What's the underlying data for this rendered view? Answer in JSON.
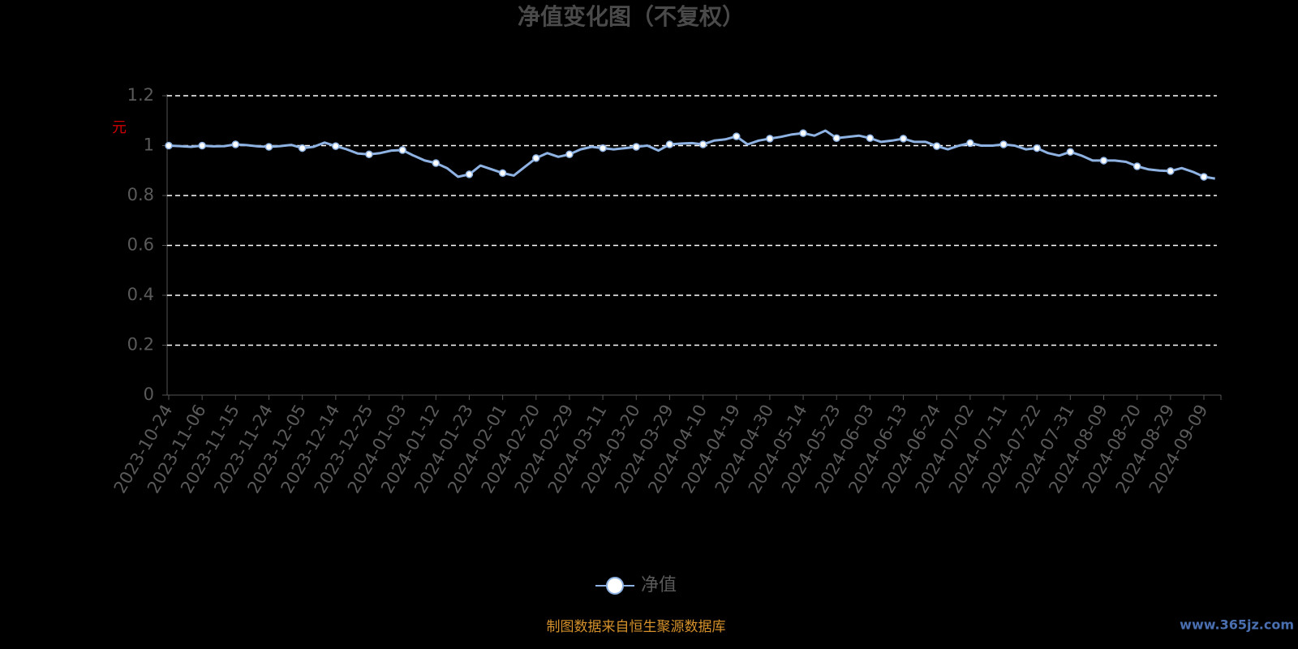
{
  "chart_data": {
    "type": "line",
    "title": "净值变化图（不复权）",
    "y_label": "元",
    "source": "制图数据来自恒生聚源数据库",
    "watermark": "www.365jz.com",
    "categories": [
      "2023-10-24",
      null,
      null,
      "2023-11-06",
      null,
      null,
      "2023-11-15",
      null,
      null,
      "2023-11-24",
      null,
      null,
      "2023-12-05",
      null,
      null,
      "2023-12-14",
      null,
      null,
      "2023-12-25",
      null,
      null,
      "2024-01-03",
      null,
      null,
      "2024-01-12",
      null,
      null,
      "2024-01-23",
      null,
      null,
      "2024-02-01",
      null,
      null,
      "2024-02-20",
      null,
      null,
      "2024-02-29",
      null,
      null,
      "2024-03-11",
      null,
      null,
      "2024-03-20",
      null,
      null,
      "2024-03-29",
      null,
      null,
      "2024-04-10",
      null,
      null,
      "2024-04-19",
      null,
      null,
      "2024-04-30",
      null,
      null,
      "2024-05-14",
      null,
      null,
      "2024-05-23",
      null,
      null,
      "2024-06-03",
      null,
      null,
      "2024-06-13",
      null,
      null,
      "2024-06-24",
      null,
      null,
      "2024-07-02",
      null,
      null,
      "2024-07-11",
      null,
      null,
      "2024-07-22",
      null,
      null,
      "2024-07-31",
      null,
      null,
      "2024-08-09",
      null,
      null,
      "2024-08-20",
      null,
      null,
      "2024-08-29",
      null,
      null,
      "2024-09-09",
      null
    ],
    "series": [
      {
        "name": "净值",
        "color": "#8eb2e2",
        "values": [
          1.0,
          0.998,
          0.995,
          1.0,
          0.997,
          0.998,
          1.005,
          1.002,
          0.997,
          0.995,
          0.998,
          1.003,
          0.99,
          0.995,
          1.012,
          0.998,
          0.985,
          0.968,
          0.965,
          0.97,
          0.98,
          0.982,
          0.96,
          0.94,
          0.93,
          0.91,
          0.875,
          0.885,
          0.92,
          0.905,
          0.89,
          0.88,
          0.915,
          0.95,
          0.97,
          0.955,
          0.965,
          0.985,
          0.995,
          0.99,
          0.985,
          0.99,
          0.995,
          1.0,
          0.98,
          1.005,
          1.008,
          1.01,
          1.005,
          1.02,
          1.025,
          1.037,
          1.005,
          1.02,
          1.028,
          1.035,
          1.045,
          1.05,
          1.04,
          1.06,
          1.03,
          1.035,
          1.04,
          1.03,
          1.015,
          1.02,
          1.028,
          1.015,
          1.015,
          0.998,
          0.985,
          1.0,
          1.01,
          1.0,
          1.0,
          1.005,
          1.0,
          0.985,
          0.99,
          0.97,
          0.96,
          0.975,
          0.96,
          0.94,
          0.94,
          0.94,
          0.935,
          0.917,
          0.905,
          0.9,
          0.898,
          0.91,
          0.895,
          0.875,
          0.868
        ]
      }
    ],
    "ylim": [
      0,
      1.2
    ],
    "yticks": [
      0,
      0.2,
      0.4,
      0.6,
      0.8,
      1,
      1.2
    ],
    "grid": true,
    "legend": "bottom"
  }
}
